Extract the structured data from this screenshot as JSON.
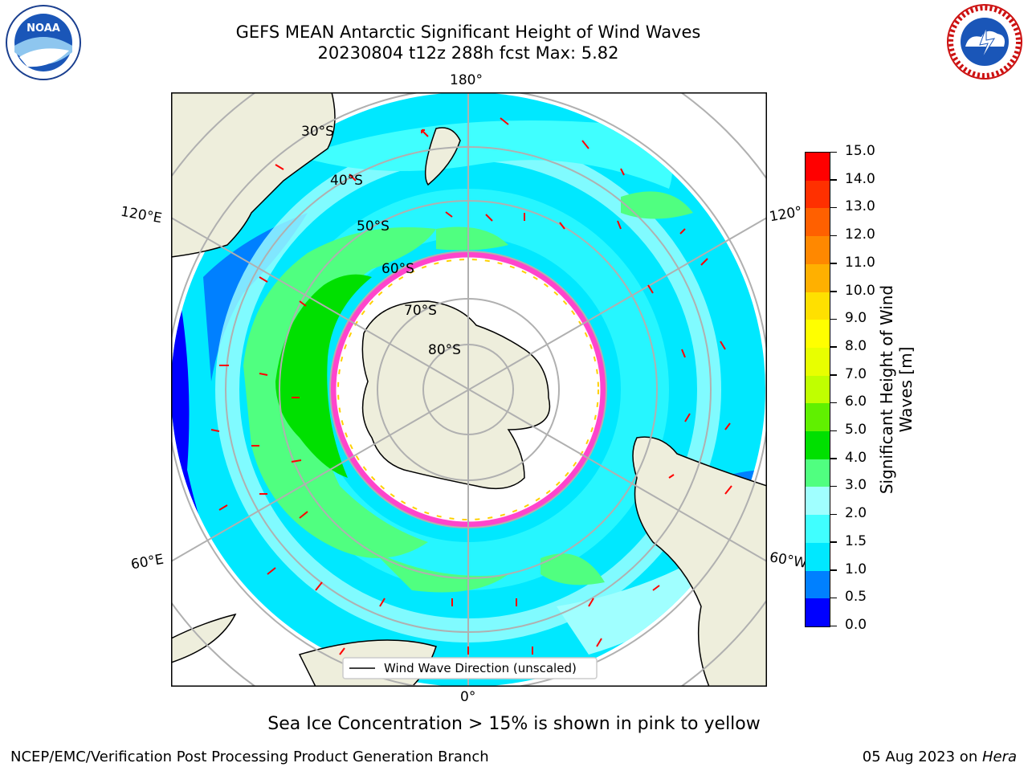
{
  "title_line1": "GEFS MEAN Antarctic Significant Height of Wind Waves",
  "title_line2": "20230804 t12z 288h fcst   Max: 5.82",
  "lon_labels": {
    "top": "180°",
    "bottom": "0°",
    "left_upper": "120°E",
    "left_lower": "60°E",
    "right_upper": "120°",
    "right_lower": "60°W"
  },
  "lat_labels": [
    "30°S",
    "40°S",
    "50°S",
    "60°S",
    "70°S",
    "80°S"
  ],
  "legend_label": "Wind Wave Direction (unscaled)",
  "colorbar": {
    "label": "Significant Height of Wind Waves [m]",
    "ticks": [
      "0.0",
      "0.5",
      "1.0",
      "1.5",
      "2.0",
      "3.0",
      "4.0",
      "5.0",
      "6.0",
      "7.0",
      "8.0",
      "9.0",
      "10.0",
      "11.0",
      "12.0",
      "13.0",
      "14.0",
      "15.0"
    ],
    "colors": [
      "#0000ff",
      "#0080ff",
      "#00e8ff",
      "#40ffff",
      "#a0ffff",
      "#50ff80",
      "#00e000",
      "#60f000",
      "#c0ff00",
      "#e8ff00",
      "#ffff00",
      "#ffe000",
      "#ffb000",
      "#ff8800",
      "#ff6000",
      "#ff3000",
      "#ff0000"
    ]
  },
  "sea_ice_note": "Sea Ice Concentration > 15% is shown in pink to yellow",
  "credit": "NCEP/EMC/Verification Post Processing Product Generation Branch",
  "date_prefix": "05 Aug 2023 on ",
  "date_host": "Hera",
  "logos": {
    "noaa_text": "NOAA",
    "nws_text": "NATIONAL WEATHER SERVICE"
  }
}
